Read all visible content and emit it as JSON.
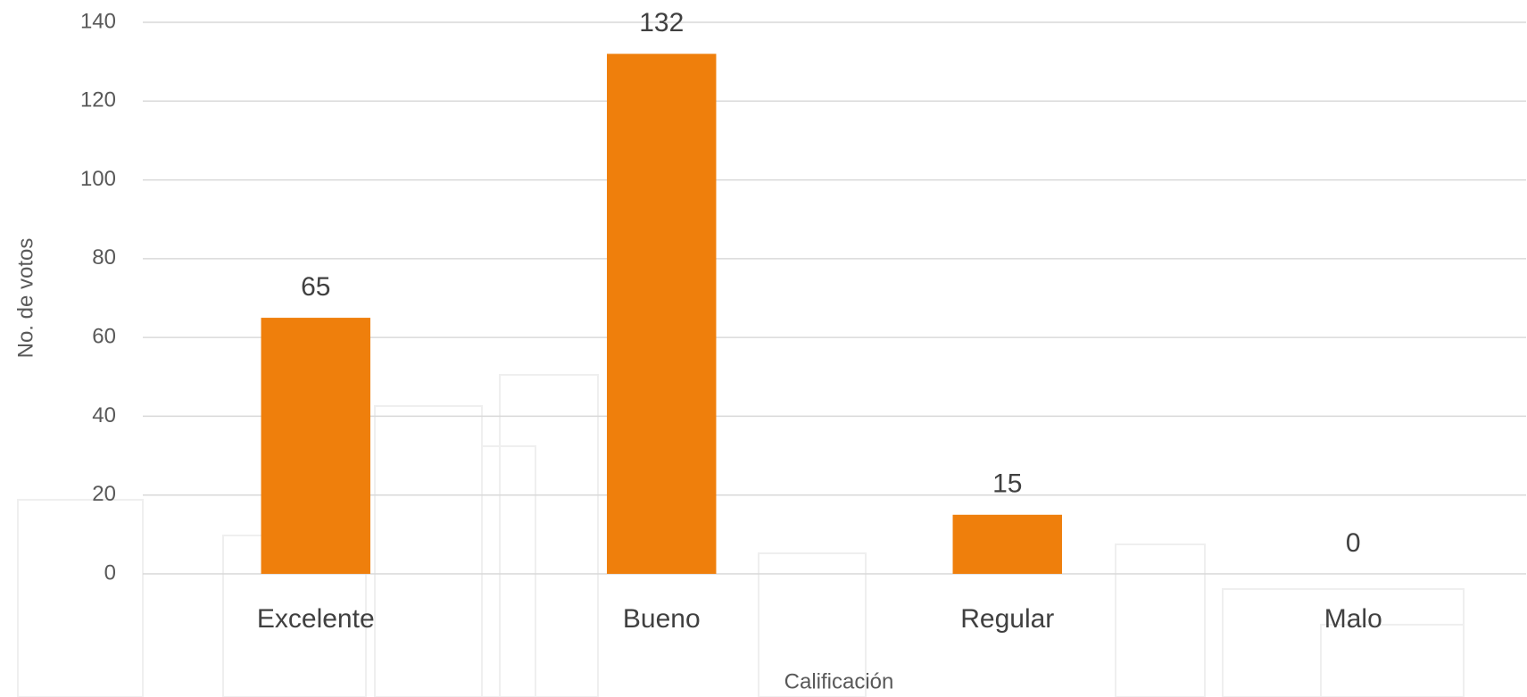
{
  "chart_data": {
    "type": "bar",
    "x_label": "Calificación",
    "y_label": "No. de votos",
    "categories": [
      "Excelente",
      "Bueno",
      "Regular",
      "Malo"
    ],
    "values": [
      65,
      132,
      15,
      0
    ],
    "color": "#ef7f0c",
    "ylim": [
      0,
      140
    ],
    "yticks": [
      0,
      20,
      40,
      60,
      80,
      100,
      120,
      140
    ],
    "grid": true
  }
}
